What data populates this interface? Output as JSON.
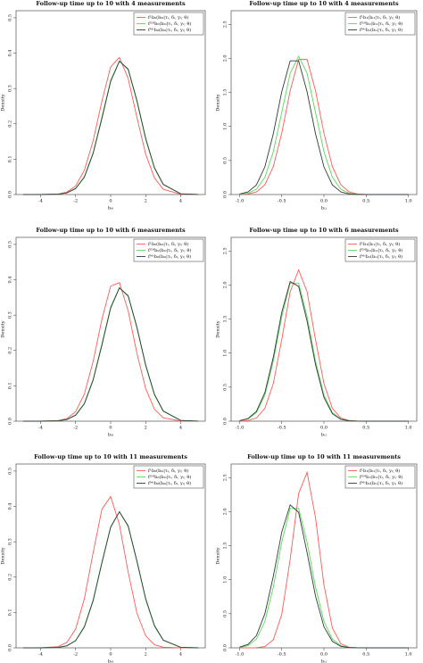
{
  "chart_data": [
    {
      "type": "line",
      "title": "Follow-up time up to 10 with 4 measurements",
      "x_label": "bᵢ₀",
      "y_label": "Density",
      "x": [
        -5,
        -4,
        -3,
        -2.5,
        -2,
        -1.5,
        -1,
        -0.5,
        0,
        0.5,
        1,
        1.5,
        2,
        2.5,
        3,
        4,
        5
      ],
      "series": [
        {
          "name": "fᴸb₀(bᵢ₀|τᵢ, δᵢ, yᵢ; θ)",
          "color": "#ff5a5a",
          "values": [
            0,
            0,
            0.0015,
            0.0069,
            0.024,
            0.069,
            0.152,
            0.264,
            0.361,
            0.388,
            0.328,
            0.218,
            0.114,
            0.047,
            0.015,
            0.0008,
            0
          ]
        },
        {
          "name": "fᴳᴴb₀(bᵢ₀|τᵢ, δᵢ, yᵢ; θ)",
          "color": "#5bd85b",
          "values": [
            0,
            0,
            0.0011,
            0.0049,
            0.0176,
            0.051,
            0.119,
            0.219,
            0.323,
            0.378,
            0.353,
            0.263,
            0.156,
            0.074,
            0.028,
            0.002,
            0.0001
          ]
        },
        {
          "name": "fᴹᶜb₀(bᵢ₀|τᵢ, δᵢ, yᵢ; θ)",
          "color": "#2f3b3b",
          "values": [
            0,
            0,
            0.001,
            0.0046,
            0.0168,
            0.049,
            0.116,
            0.215,
            0.32,
            0.377,
            0.355,
            0.266,
            0.159,
            0.076,
            0.029,
            0.0021,
            0.0001
          ]
        }
      ],
      "xlim": [
        -5.4,
        5.4
      ],
      "ylim": [
        0,
        0.52
      ],
      "xticks": [
        -4,
        -2,
        0,
        2,
        4
      ],
      "yticks": [
        {
          "value": 0,
          "label": "0.0"
        },
        0.1,
        0.2,
        0.3,
        0.4,
        0.5
      ],
      "legend": "upper right"
    },
    {
      "type": "line",
      "title": "Follow-up time up to 10 with 4 measurements",
      "x_label": "bᵢ₁",
      "y_label": "Density",
      "x": [
        -1.0,
        -0.9,
        -0.8,
        -0.7,
        -0.6,
        -0.5,
        -0.4,
        -0.3,
        -0.2,
        -0.1,
        0.0,
        0.1,
        0.2,
        0.3,
        0.4,
        0.5,
        0.6,
        0.7,
        0.8,
        0.9,
        1.0
      ],
      "series": [
        {
          "name": "fᴸb₁(bᵢ₁|τᵢ, δᵢ, yᵢ; θ)",
          "color": "#ff5a5a",
          "values": [
            0.001,
            0.008,
            0.038,
            0.143,
            0.41,
            0.902,
            1.525,
            1.984,
            1.984,
            1.525,
            0.902,
            0.41,
            0.143,
            0.038,
            0.008,
            0.001,
            0,
            0,
            0,
            0,
            0
          ]
        },
        {
          "name": "fᴳᴴb₁(bᵢ₁|τᵢ, δᵢ, yᵢ; θ)",
          "color": "#5bd85b",
          "values": [
            0.003,
            0.019,
            0.079,
            0.254,
            0.629,
            1.206,
            1.782,
            2.03,
            1.782,
            1.206,
            0.629,
            0.254,
            0.079,
            0.019,
            0.003,
            0,
            0,
            0,
            0,
            0,
            0
          ]
        },
        {
          "name": "fᴹᶜb₁(bᵢ₁|τᵢ, δᵢ, yᵢ; θ)",
          "color": "#2f3b3b",
          "values": [
            0.008,
            0.038,
            0.142,
            0.406,
            0.893,
            1.51,
            1.964,
            1.964,
            1.51,
            0.893,
            0.406,
            0.142,
            0.038,
            0.008,
            0.001,
            0,
            0,
            0,
            0,
            0,
            0
          ]
        }
      ],
      "xlim": [
        -1.1,
        1.1
      ],
      "ylim": [
        0,
        2.7
      ],
      "xticks": [
        {
          "value": -1,
          "label": "-1.0"
        },
        -0.5,
        {
          "value": 0,
          "label": "0.0"
        },
        0.5,
        {
          "value": 1,
          "label": "1.0"
        }
      ],
      "yticks": [
        {
          "value": 0,
          "label": "0.0"
        },
        0.5,
        {
          "value": 1,
          "label": "1.0"
        },
        1.5,
        {
          "value": 2,
          "label": "2.0"
        },
        2.5
      ],
      "legend": "upper right"
    },
    {
      "type": "line",
      "title": "Follow-up time up to 10 with 6 measurements",
      "x_label": "bᵢ₀",
      "y_label": "Density",
      "x": [
        -5,
        -4,
        -3,
        -2.5,
        -2,
        -1.5,
        -1,
        -0.5,
        0,
        0.5,
        1,
        1.5,
        2,
        2.5,
        3,
        4,
        5
      ],
      "series": [
        {
          "name": "fᴸb₀(bᵢ₀|τᵢ, δᵢ, yᵢ; θ)",
          "color": "#ff5a5a",
          "values": [
            0,
            0,
            0.0016,
            0.0073,
            0.027,
            0.077,
            0.169,
            0.288,
            0.382,
            0.392,
            0.312,
            0.192,
            0.092,
            0.034,
            0.0097,
            0.0004,
            0
          ]
        },
        {
          "name": "fᴳᴴb₀(bᵢ₀|τᵢ, δᵢ, yᵢ; θ)",
          "color": "#5bd85b",
          "values": [
            0,
            0,
            0.0011,
            0.0049,
            0.0176,
            0.051,
            0.119,
            0.219,
            0.323,
            0.378,
            0.353,
            0.263,
            0.156,
            0.074,
            0.028,
            0.002,
            0.0001
          ]
        },
        {
          "name": "fᴹᶜb₀(bᵢ₀|τᵢ, δᵢ, yᵢ; θ)",
          "color": "#2f3b3b",
          "values": [
            0,
            0,
            0.001,
            0.0046,
            0.0168,
            0.049,
            0.116,
            0.215,
            0.32,
            0.377,
            0.355,
            0.266,
            0.159,
            0.076,
            0.029,
            0.0021,
            0.0001
          ]
        }
      ],
      "xlim": [
        -5.4,
        5.4
      ],
      "ylim": [
        0,
        0.52
      ],
      "xticks": [
        -4,
        -2,
        0,
        2,
        4
      ],
      "yticks": [
        {
          "value": 0,
          "label": "0.0"
        },
        0.1,
        0.2,
        0.3,
        0.4,
        0.5
      ],
      "legend": "upper right"
    },
    {
      "type": "line",
      "title": "Follow-up time up to 10 with 6 measurements",
      "x_label": "bᵢ₁",
      "y_label": "Density",
      "x": [
        -1.0,
        -0.9,
        -0.8,
        -0.7,
        -0.6,
        -0.5,
        -0.4,
        -0.3,
        -0.2,
        -0.1,
        0.0,
        0.1,
        0.2,
        0.3,
        0.4,
        0.5,
        0.6,
        0.7,
        0.8,
        0.9,
        1.0
      ],
      "series": [
        {
          "name": "fᴸb₁(bᵢ₁|τᵢ, δᵢ, yᵢ; θ)",
          "color": "#ff5a5a",
          "values": [
            0.001,
            0.009,
            0.047,
            0.188,
            0.553,
            1.198,
            1.903,
            2.22,
            1.903,
            1.198,
            0.553,
            0.188,
            0.047,
            0.009,
            0.001,
            0,
            0,
            0,
            0,
            0,
            0
          ]
        },
        {
          "name": "fᴳᴴb₁(bᵢ₁|τᵢ, δᵢ, yᵢ; θ)",
          "color": "#5bd85b",
          "values": [
            0.006,
            0.032,
            0.127,
            0.384,
            0.883,
            1.537,
            2.028,
            2.028,
            1.537,
            0.883,
            0.384,
            0.127,
            0.032,
            0.006,
            0.001,
            0,
            0,
            0,
            0,
            0,
            0
          ]
        },
        {
          "name": "fᴹᶜb₁(bᵢ₁|τᵢ, δᵢ, yᵢ; θ)",
          "color": "#2f3b3b",
          "values": [
            0.007,
            0.038,
            0.145,
            0.42,
            0.94,
            1.6,
            2.05,
            1.98,
            1.47,
            0.83,
            0.35,
            0.11,
            0.027,
            0.005,
            0.001,
            0,
            0,
            0,
            0,
            0,
            0
          ]
        }
      ],
      "xlim": [
        -1.1,
        1.1
      ],
      "ylim": [
        0,
        2.7
      ],
      "xticks": [
        {
          "value": -1,
          "label": "-1.0"
        },
        -0.5,
        {
          "value": 0,
          "label": "0.0"
        },
        0.5,
        {
          "value": 1,
          "label": "1.0"
        }
      ],
      "yticks": [
        {
          "value": 0,
          "label": "0.0"
        },
        0.5,
        {
          "value": 1,
          "label": "1.0"
        },
        1.5,
        {
          "value": 2,
          "label": "2.0"
        },
        2.5
      ],
      "legend": "upper right"
    },
    {
      "type": "line",
      "title": "Follow-up time up to 10 with 11 measurements",
      "x_label": "bᵢ₀",
      "y_label": "Density",
      "x": [
        -5,
        -4,
        -3,
        -2.5,
        -2,
        -1.5,
        -1,
        -0.5,
        0,
        0.5,
        1,
        1.5,
        2,
        2.5,
        3,
        4,
        5
      ],
      "series": [
        {
          "name": "fᴸb₀(bᵢ₀|τᵢ, δᵢ, yᵢ; θ)",
          "color": "#ff5a5a",
          "values": [
            0,
            0.0001,
            0.0033,
            0.0154,
            0.053,
            0.139,
            0.269,
            0.392,
            0.428,
            0.349,
            0.214,
            0.098,
            0.034,
            0.0086,
            0.0017,
            0,
            0
          ]
        },
        {
          "name": "fᴳᴴb₀(bᵢ₀|τᵢ, δᵢ, yᵢ; θ)",
          "color": "#5bd85b",
          "values": [
            0,
            0,
            0.0013,
            0.006,
            0.021,
            0.061,
            0.136,
            0.243,
            0.343,
            0.385,
            0.343,
            0.243,
            0.136,
            0.061,
            0.021,
            0.0013,
            0
          ]
        },
        {
          "name": "fᴹᶜb₀(bᵢ₀|τᵢ, δᵢ, yᵢ; θ)",
          "color": "#2f3b3b",
          "values": [
            0,
            0,
            0.0012,
            0.0056,
            0.02,
            0.059,
            0.133,
            0.24,
            0.341,
            0.385,
            0.345,
            0.246,
            0.139,
            0.063,
            0.022,
            0.0014,
            0
          ]
        }
      ],
      "xlim": [
        -5.4,
        5.4
      ],
      "ylim": [
        0,
        0.52
      ],
      "xticks": [
        -4,
        -2,
        0,
        2,
        4
      ],
      "yticks": [
        {
          "value": 0,
          "label": "0.0"
        },
        0.1,
        0.2,
        0.3,
        0.4,
        0.5
      ],
      "legend": "upper right"
    },
    {
      "type": "line",
      "title": "Follow-up time up to 10 with 11 measurements",
      "x_label": "bᵢ₁",
      "y_label": "Density",
      "x": [
        -1.0,
        -0.9,
        -0.8,
        -0.7,
        -0.6,
        -0.5,
        -0.4,
        -0.3,
        -0.2,
        -0.1,
        0.0,
        0.1,
        0.2,
        0.3,
        0.4,
        0.5,
        0.6,
        0.7,
        0.8,
        0.9,
        1.0
      ],
      "series": [
        {
          "name": "fᴸb₁(bᵢ₁|τᵢ, δᵢ, yᵢ; θ)",
          "color": "#ff5a5a",
          "values": [
            0,
            0,
            0.002,
            0.019,
            0.119,
            0.489,
            1.302,
            2.267,
            2.578,
            1.913,
            0.925,
            0.291,
            0.06,
            0.008,
            0.001,
            0,
            0,
            0,
            0,
            0,
            0
          ]
        },
        {
          "name": "fᴳᴴb₁(bᵢ₁|τᵢ, δᵢ, yᵢ; θ)",
          "color": "#5bd85b",
          "values": [
            0.006,
            0.032,
            0.128,
            0.388,
            0.891,
            1.552,
            2.047,
            2.047,
            1.552,
            0.891,
            0.388,
            0.128,
            0.032,
            0.006,
            0.001,
            0,
            0,
            0,
            0,
            0,
            0
          ]
        },
        {
          "name": "fᴹᶜb₁(bᵢ₁|τᵢ, δᵢ, yᵢ; θ)",
          "color": "#2f3b3b",
          "values": [
            0.01,
            0.05,
            0.18,
            0.5,
            1.05,
            1.7,
            2.1,
            1.99,
            1.4,
            0.76,
            0.31,
            0.095,
            0.022,
            0.004,
            0.0005,
            0,
            0,
            0,
            0,
            0,
            0
          ]
        }
      ],
      "xlim": [
        -1.1,
        1.1
      ],
      "ylim": [
        0,
        2.7
      ],
      "xticks": [
        {
          "value": -1,
          "label": "-1.0"
        },
        -0.5,
        {
          "value": 0,
          "label": "0.0"
        },
        0.5,
        {
          "value": 1,
          "label": "1.0"
        }
      ],
      "yticks": [
        {
          "value": 0,
          "label": "0.0"
        },
        0.5,
        {
          "value": 1,
          "label": "1.0"
        },
        1.5,
        {
          "value": 2,
          "label": "2.0"
        },
        2.5
      ],
      "legend": "upper right"
    }
  ]
}
